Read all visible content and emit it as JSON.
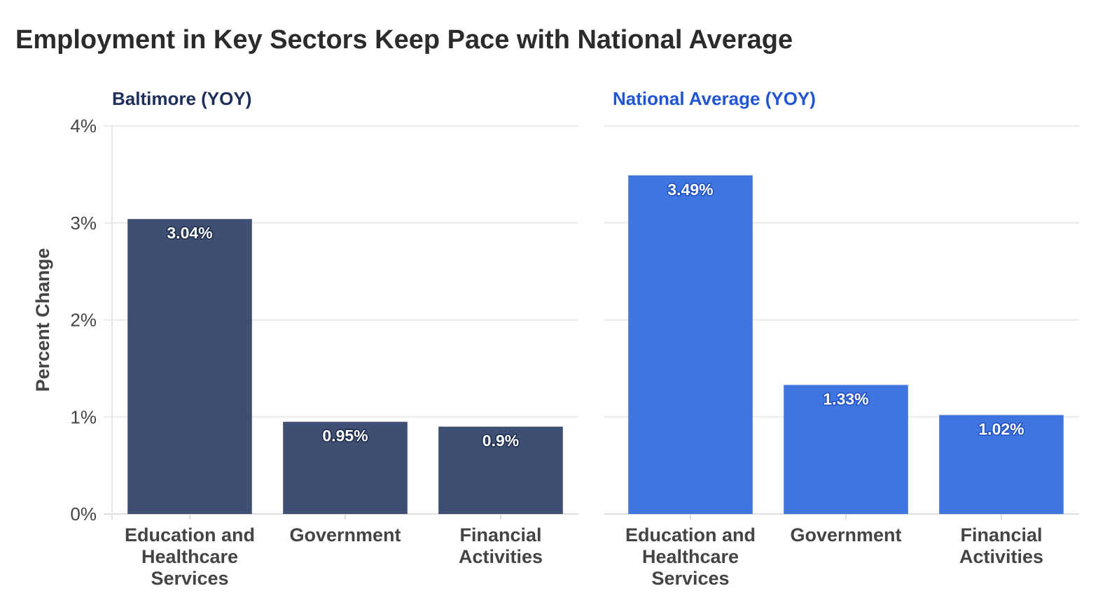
{
  "chart_data": {
    "type": "bar",
    "title": "Employment in Key Sectors Keep Pace with National Average",
    "ylabel": "Percent Change",
    "ylim": [
      0,
      4
    ],
    "yticks": [
      "0%",
      "1%",
      "2%",
      "3%",
      "4%"
    ],
    "panels": [
      {
        "title": "Baltimore (YOY)",
        "color": "#3e4f73",
        "label_outline": "#1c2a4a",
        "title_color": "#1f2f5c",
        "categories": [
          "Education and Healthcare Services",
          "Government",
          "Financial Activities"
        ],
        "category_lines": [
          [
            "Education and",
            "Healthcare",
            "Services"
          ],
          [
            "Government"
          ],
          [
            "Financial",
            "Activities"
          ]
        ],
        "values": [
          3.04,
          0.95,
          0.9
        ],
        "labels": [
          "3.04%",
          "0.95%",
          "0.9%"
        ]
      },
      {
        "title": "National Average (YOY)",
        "color": "#4075e0",
        "label_outline": "#1f4fc4",
        "title_color": "#1f55d6",
        "categories": [
          "Education and Healthcare Services",
          "Government",
          "Financial Activities"
        ],
        "category_lines": [
          [
            "Education and",
            "Healthcare",
            "Services"
          ],
          [
            "Government"
          ],
          [
            "Financial",
            "Activities"
          ]
        ],
        "values": [
          3.49,
          1.33,
          1.02
        ],
        "labels": [
          "3.49%",
          "1.33%",
          "1.02%"
        ]
      }
    ]
  }
}
